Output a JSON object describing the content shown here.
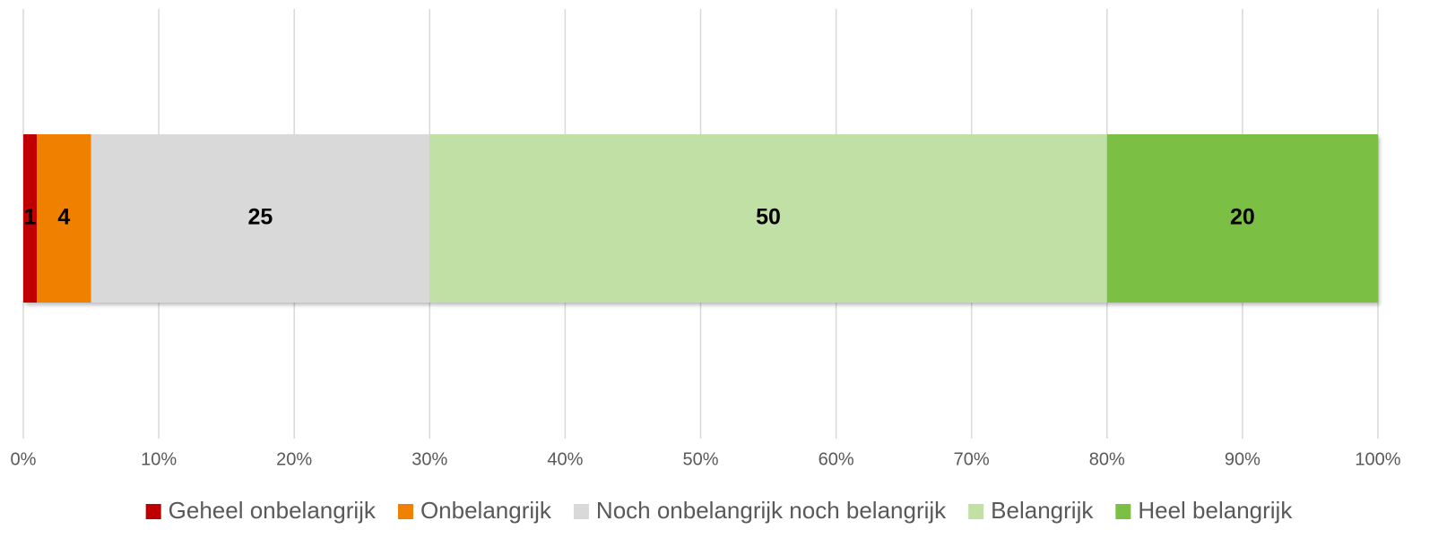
{
  "chart_data": {
    "type": "bar",
    "orientation": "horizontal",
    "stacked": true,
    "categories": [
      null
    ],
    "series": [
      {
        "name": "Geheel onbelangrijk",
        "color": "#c00000",
        "values": [
          1
        ]
      },
      {
        "name": "Onbelangrijk",
        "color": "#f08000",
        "values": [
          4
        ]
      },
      {
        "name": "Noch onbelangrijk noch belangrijk",
        "color": "#d9d9d9",
        "values": [
          25
        ]
      },
      {
        "name": "Belangrijk",
        "color": "#c0e0a6",
        "values": [
          50
        ]
      },
      {
        "name": "Heel belangrijk",
        "color": "#7bbf45",
        "values": [
          20
        ]
      }
    ],
    "xlim": [
      0,
      100
    ],
    "xticks": [
      {
        "value": 0,
        "label": "0%"
      },
      {
        "value": 10,
        "label": "10%"
      },
      {
        "value": 20,
        "label": "20%"
      },
      {
        "value": 30,
        "label": "30%"
      },
      {
        "value": 40,
        "label": "40%"
      },
      {
        "value": 50,
        "label": "50%"
      },
      {
        "value": 60,
        "label": "60%"
      },
      {
        "value": 70,
        "label": "70%"
      },
      {
        "value": 80,
        "label": "80%"
      },
      {
        "value": 90,
        "label": "90%"
      },
      {
        "value": 100,
        "label": "100%"
      }
    ],
    "grid": true,
    "legend": "bottom"
  }
}
